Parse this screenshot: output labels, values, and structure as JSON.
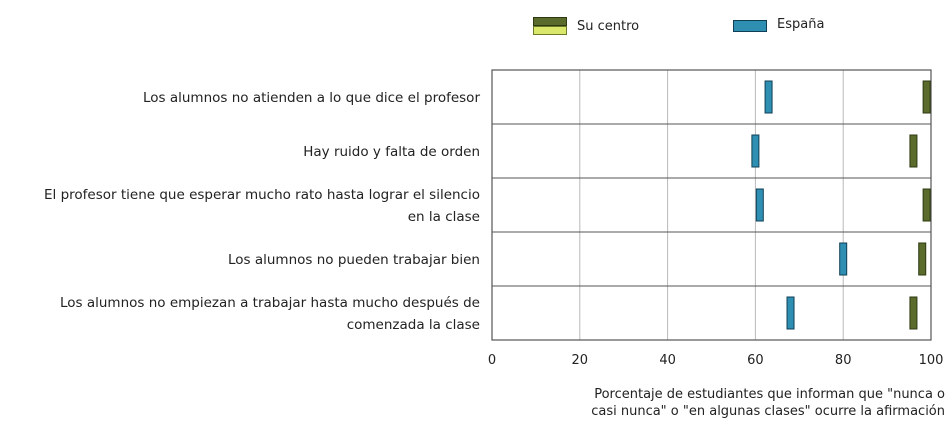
{
  "chart_data": {
    "type": "bar",
    "categories": [
      [
        "Los alumnos no atienden a lo que dice el profesor"
      ],
      [
        "Hay ruido y falta de orden"
      ],
      [
        "El profesor tiene que esperar mucho rato hasta lograr el silencio",
        "en la clase"
      ],
      [
        "Los alumnos no pueden trabajar bien"
      ],
      [
        "Los alumnos no empiezan a trabajar hasta mucho después de",
        "comenzada la clase"
      ]
    ],
    "series": [
      {
        "name": "Su centro",
        "values": [
          99,
          96,
          99,
          98,
          96
        ]
      },
      {
        "name": "España",
        "values": [
          63,
          60,
          61,
          80,
          68
        ]
      }
    ],
    "xlim": [
      0,
      100
    ],
    "xticks": [
      0,
      20,
      40,
      60,
      80,
      100
    ],
    "xlabel": [
      "Porcentaje de estudiantes que informan que \"nunca o",
      "casi nunca\" o \"en algunas clases\" ocurre la afirmación"
    ],
    "grid": true,
    "legend_position": "top"
  },
  "colors": {
    "su_centro_dark": "#5b6b2b",
    "su_centro_light": "#d9e86a",
    "espana": "#2e8fb2",
    "grid": "#b9b9b9",
    "frame": "#555555"
  }
}
